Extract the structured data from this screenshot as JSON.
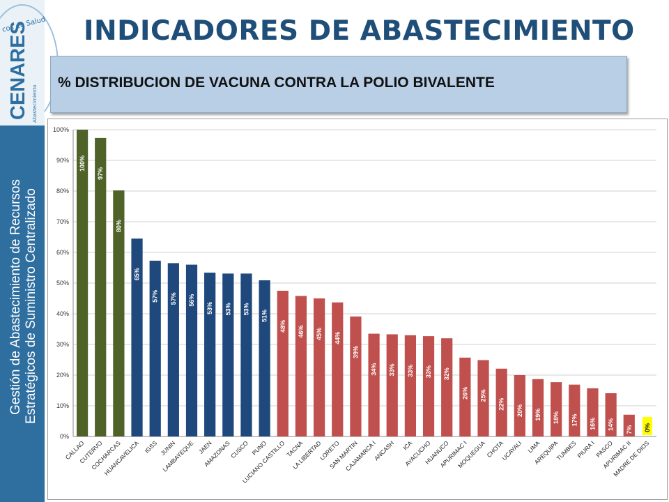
{
  "sidebar": {
    "tagline": "cos en Salud",
    "brand": "CENARES",
    "brand_sub": "Abastecimiento",
    "line1": "Gestión de Abastecimiento de Recursos",
    "line2": "Estratégicos de Suministro Centralizado"
  },
  "header": {
    "title": "INDICADORES DE ABASTECIMIENTO",
    "subtitle": "% DISTRIBUCION DE VACUNA CONTRA LA POLIO BIVALENTE"
  },
  "colors": {
    "green": "#4f6228",
    "blue": "#1f497d",
    "red": "#c0504d",
    "yellow": "#ffff00",
    "grid": "#d0d0d0"
  },
  "chart_data": {
    "type": "bar",
    "title": "",
    "xlabel": "",
    "ylabel": "",
    "ylim": [
      0,
      100
    ],
    "yticks": [
      "0%",
      "10%",
      "20%",
      "30%",
      "40%",
      "50%",
      "60%",
      "70%",
      "80%",
      "90%",
      "100%"
    ],
    "grid": true,
    "categories": [
      "CALLAO",
      "CUTERVO",
      "COCHARCAS",
      "HUANCAVELICA",
      "IGSS",
      "JUNIN",
      "LAMBAYEQUE",
      "JAEN",
      "AMAZONAS",
      "CUSCO",
      "PUNO",
      "LUCIANO CASTILLO",
      "TACNA",
      "LA LIBERTAD",
      "LORETO",
      "SAN MARTIN",
      "CAJAMARCA I",
      "ANCASH",
      "ICA",
      "AYACUCHO",
      "HUANUCO",
      "APURIMAC I",
      "MOQUEGUA",
      "CHOTA",
      "UCAYALI",
      "LIMA",
      "AREQUIPA",
      "TUMBES",
      "PIURA I",
      "PASCO",
      "APURIMAC II",
      "MADRE DE DIOS"
    ],
    "values": [
      100,
      97.3,
      80.2,
      64.5,
      57.3,
      56.5,
      56.0,
      53.4,
      53.1,
      53.1,
      50.9,
      47.5,
      45.8,
      45.0,
      43.7,
      39.1,
      33.5,
      33.3,
      33.0,
      32.7,
      32.0,
      25.7,
      24.9,
      22.1,
      20.0,
      18.7,
      17.7,
      16.9,
      15.7,
      14.1,
      7.1,
      0
    ],
    "labels": [
      "100%",
      "97%",
      "80%",
      "65%",
      "57%",
      "57%",
      "56%",
      "53%",
      "53%",
      "53%",
      "51%",
      "48%",
      "46%",
      "45%",
      "44%",
      "39%",
      "34%",
      "33%",
      "33%",
      "33%",
      "32%",
      "26%",
      "25%",
      "22%",
      "20%",
      "19%",
      "18%",
      "17%",
      "16%",
      "14%",
      "7%",
      "0%"
    ],
    "color_groups": [
      "green",
      "green",
      "green",
      "blue",
      "blue",
      "blue",
      "blue",
      "blue",
      "blue",
      "blue",
      "blue",
      "red",
      "red",
      "red",
      "red",
      "red",
      "red",
      "red",
      "red",
      "red",
      "red",
      "red",
      "red",
      "red",
      "red",
      "red",
      "red",
      "red",
      "red",
      "red",
      "red",
      "red"
    ],
    "legend": "none"
  }
}
